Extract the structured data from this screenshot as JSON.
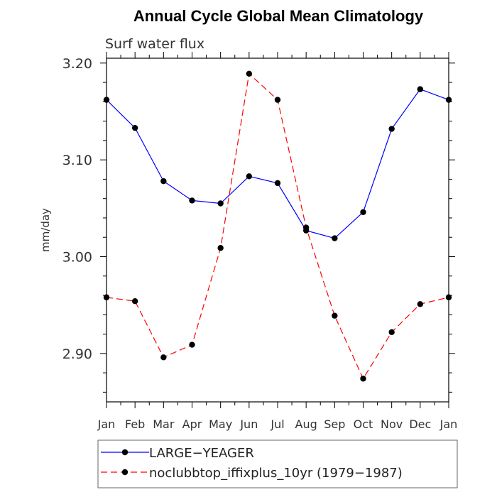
{
  "chart_data": {
    "type": "line",
    "title": "Annual Cycle Global Mean Climatology",
    "subtitle": "Surf water flux",
    "xlabel": "",
    "ylabel": "mm/day",
    "categories": [
      "Jan",
      "Feb",
      "Mar",
      "Apr",
      "May",
      "Jun",
      "Jul",
      "Aug",
      "Sep",
      "Oct",
      "Nov",
      "Dec",
      "Jan"
    ],
    "ylim": [
      2.85,
      3.205
    ],
    "yticks": [
      2.9,
      3.0,
      3.1,
      3.2
    ],
    "ytick_labels": [
      "2.90",
      "3.00",
      "3.10",
      "3.20"
    ],
    "grid": false,
    "legend_position": "bottom",
    "series": [
      {
        "name": "LARGE−YEAGER",
        "color": "#0000ff",
        "dash": "solid",
        "values": [
          3.162,
          3.133,
          3.078,
          3.058,
          3.055,
          3.083,
          3.076,
          3.027,
          3.019,
          3.046,
          3.132,
          3.173,
          3.162
        ]
      },
      {
        "name": "noclubbtop_iffixplus_10yr (1979−1987)",
        "color": "#ff0000",
        "dash": "dashed",
        "values": [
          2.958,
          2.954,
          2.896,
          2.909,
          3.009,
          3.189,
          3.162,
          3.03,
          2.939,
          2.874,
          2.922,
          2.951,
          2.958
        ]
      }
    ]
  }
}
